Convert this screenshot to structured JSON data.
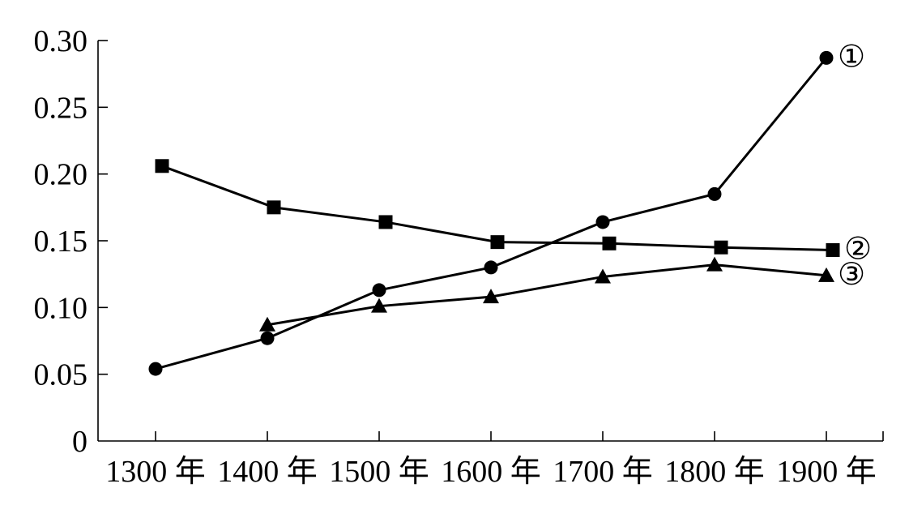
{
  "chart_data": {
    "type": "line",
    "title": "",
    "xlabel": "",
    "ylabel": "",
    "categories": [
      "1300 年",
      "1400 年",
      "1500 年",
      "1600 年",
      "1700 年",
      "1800 年",
      "1900 年"
    ],
    "y_ticks": [
      "0",
      "0.05",
      "0.10",
      "0.15",
      "0.20",
      "0.25",
      "0.30"
    ],
    "ylim": [
      0,
      0.3
    ],
    "grid": false,
    "series": [
      {
        "name": "①",
        "marker": "circle",
        "values": [
          0.054,
          0.077,
          0.113,
          0.13,
          0.164,
          0.185,
          0.287
        ]
      },
      {
        "name": "②",
        "marker": "square",
        "values": [
          0.206,
          0.175,
          0.164,
          0.149,
          0.148,
          0.145,
          0.143
        ]
      },
      {
        "name": "③",
        "marker": "triangle",
        "values": [
          null,
          0.087,
          0.101,
          0.108,
          0.123,
          0.132,
          0.124
        ]
      }
    ],
    "colors": {
      "line": "#000000",
      "background": "#ffffff"
    }
  }
}
